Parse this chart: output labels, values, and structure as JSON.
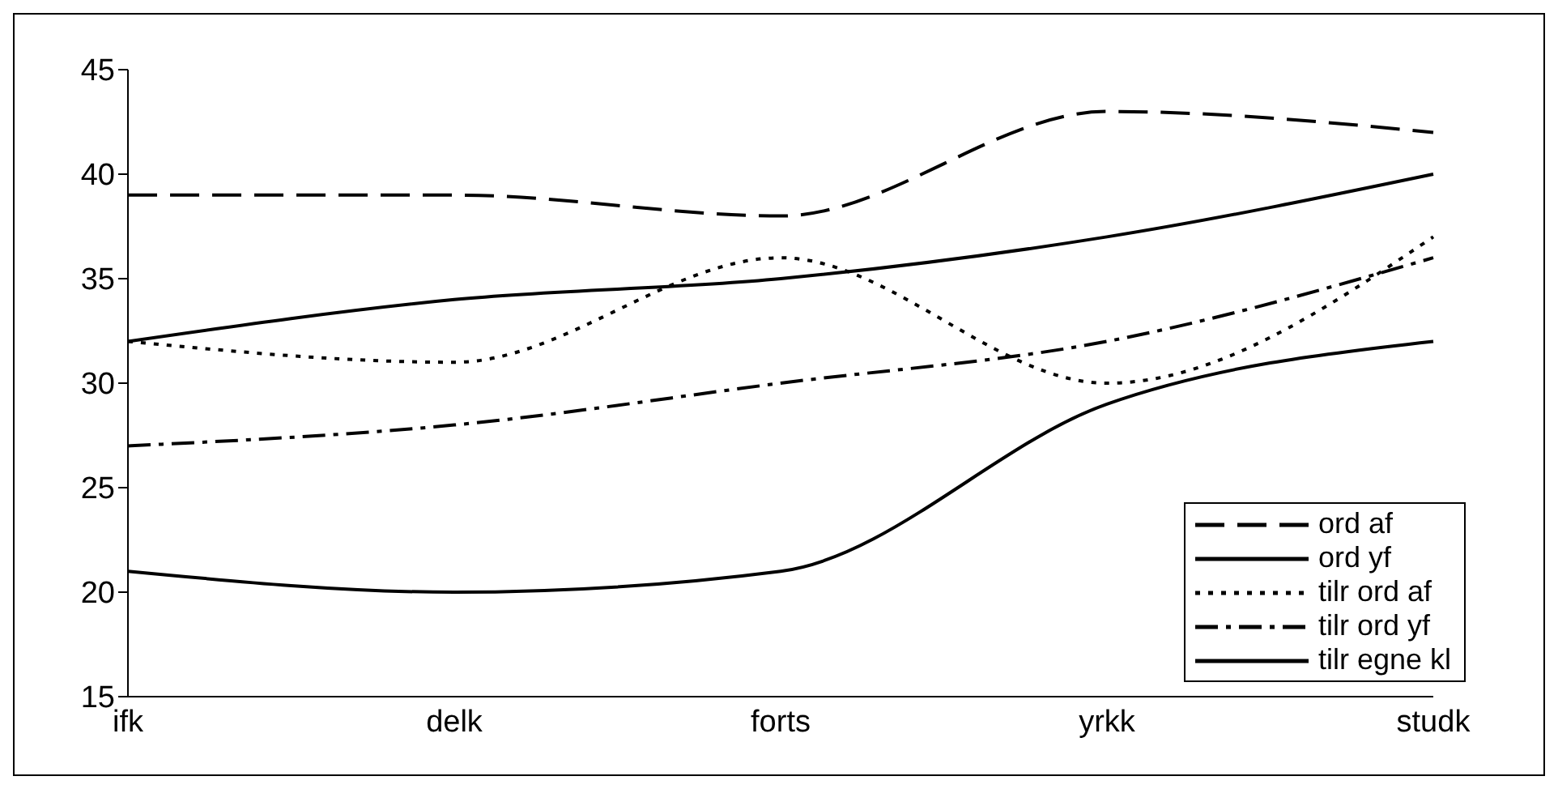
{
  "chart_data": {
    "type": "line",
    "categories": [
      "ifk",
      "delk",
      "forts",
      "yrkk",
      "studk"
    ],
    "series": [
      {
        "name": "ord af",
        "color": "#000000",
        "line_style": "dashed",
        "values": [
          39,
          39,
          38,
          43,
          42
        ]
      },
      {
        "name": "ord yf",
        "color": "#000000",
        "line_style": "solid",
        "values": [
          32,
          34,
          35,
          37,
          40
        ]
      },
      {
        "name": "tilr ord af",
        "color": "#000000",
        "line_style": "dotted",
        "values": [
          32,
          31,
          36,
          30,
          37
        ]
      },
      {
        "name": "tilr ord yf",
        "color": "#000000",
        "line_style": "dashdot",
        "values": [
          27,
          28,
          30,
          32,
          36
        ]
      },
      {
        "name": "tilr egne kl",
        "color": "#000000",
        "line_style": "solid",
        "values": [
          21,
          20,
          21,
          29,
          32
        ]
      }
    ],
    "ylim": [
      15,
      45
    ],
    "yticks": [
      15,
      20,
      25,
      30,
      35,
      40,
      45
    ],
    "legend": "bottom right",
    "marker": "none"
  }
}
